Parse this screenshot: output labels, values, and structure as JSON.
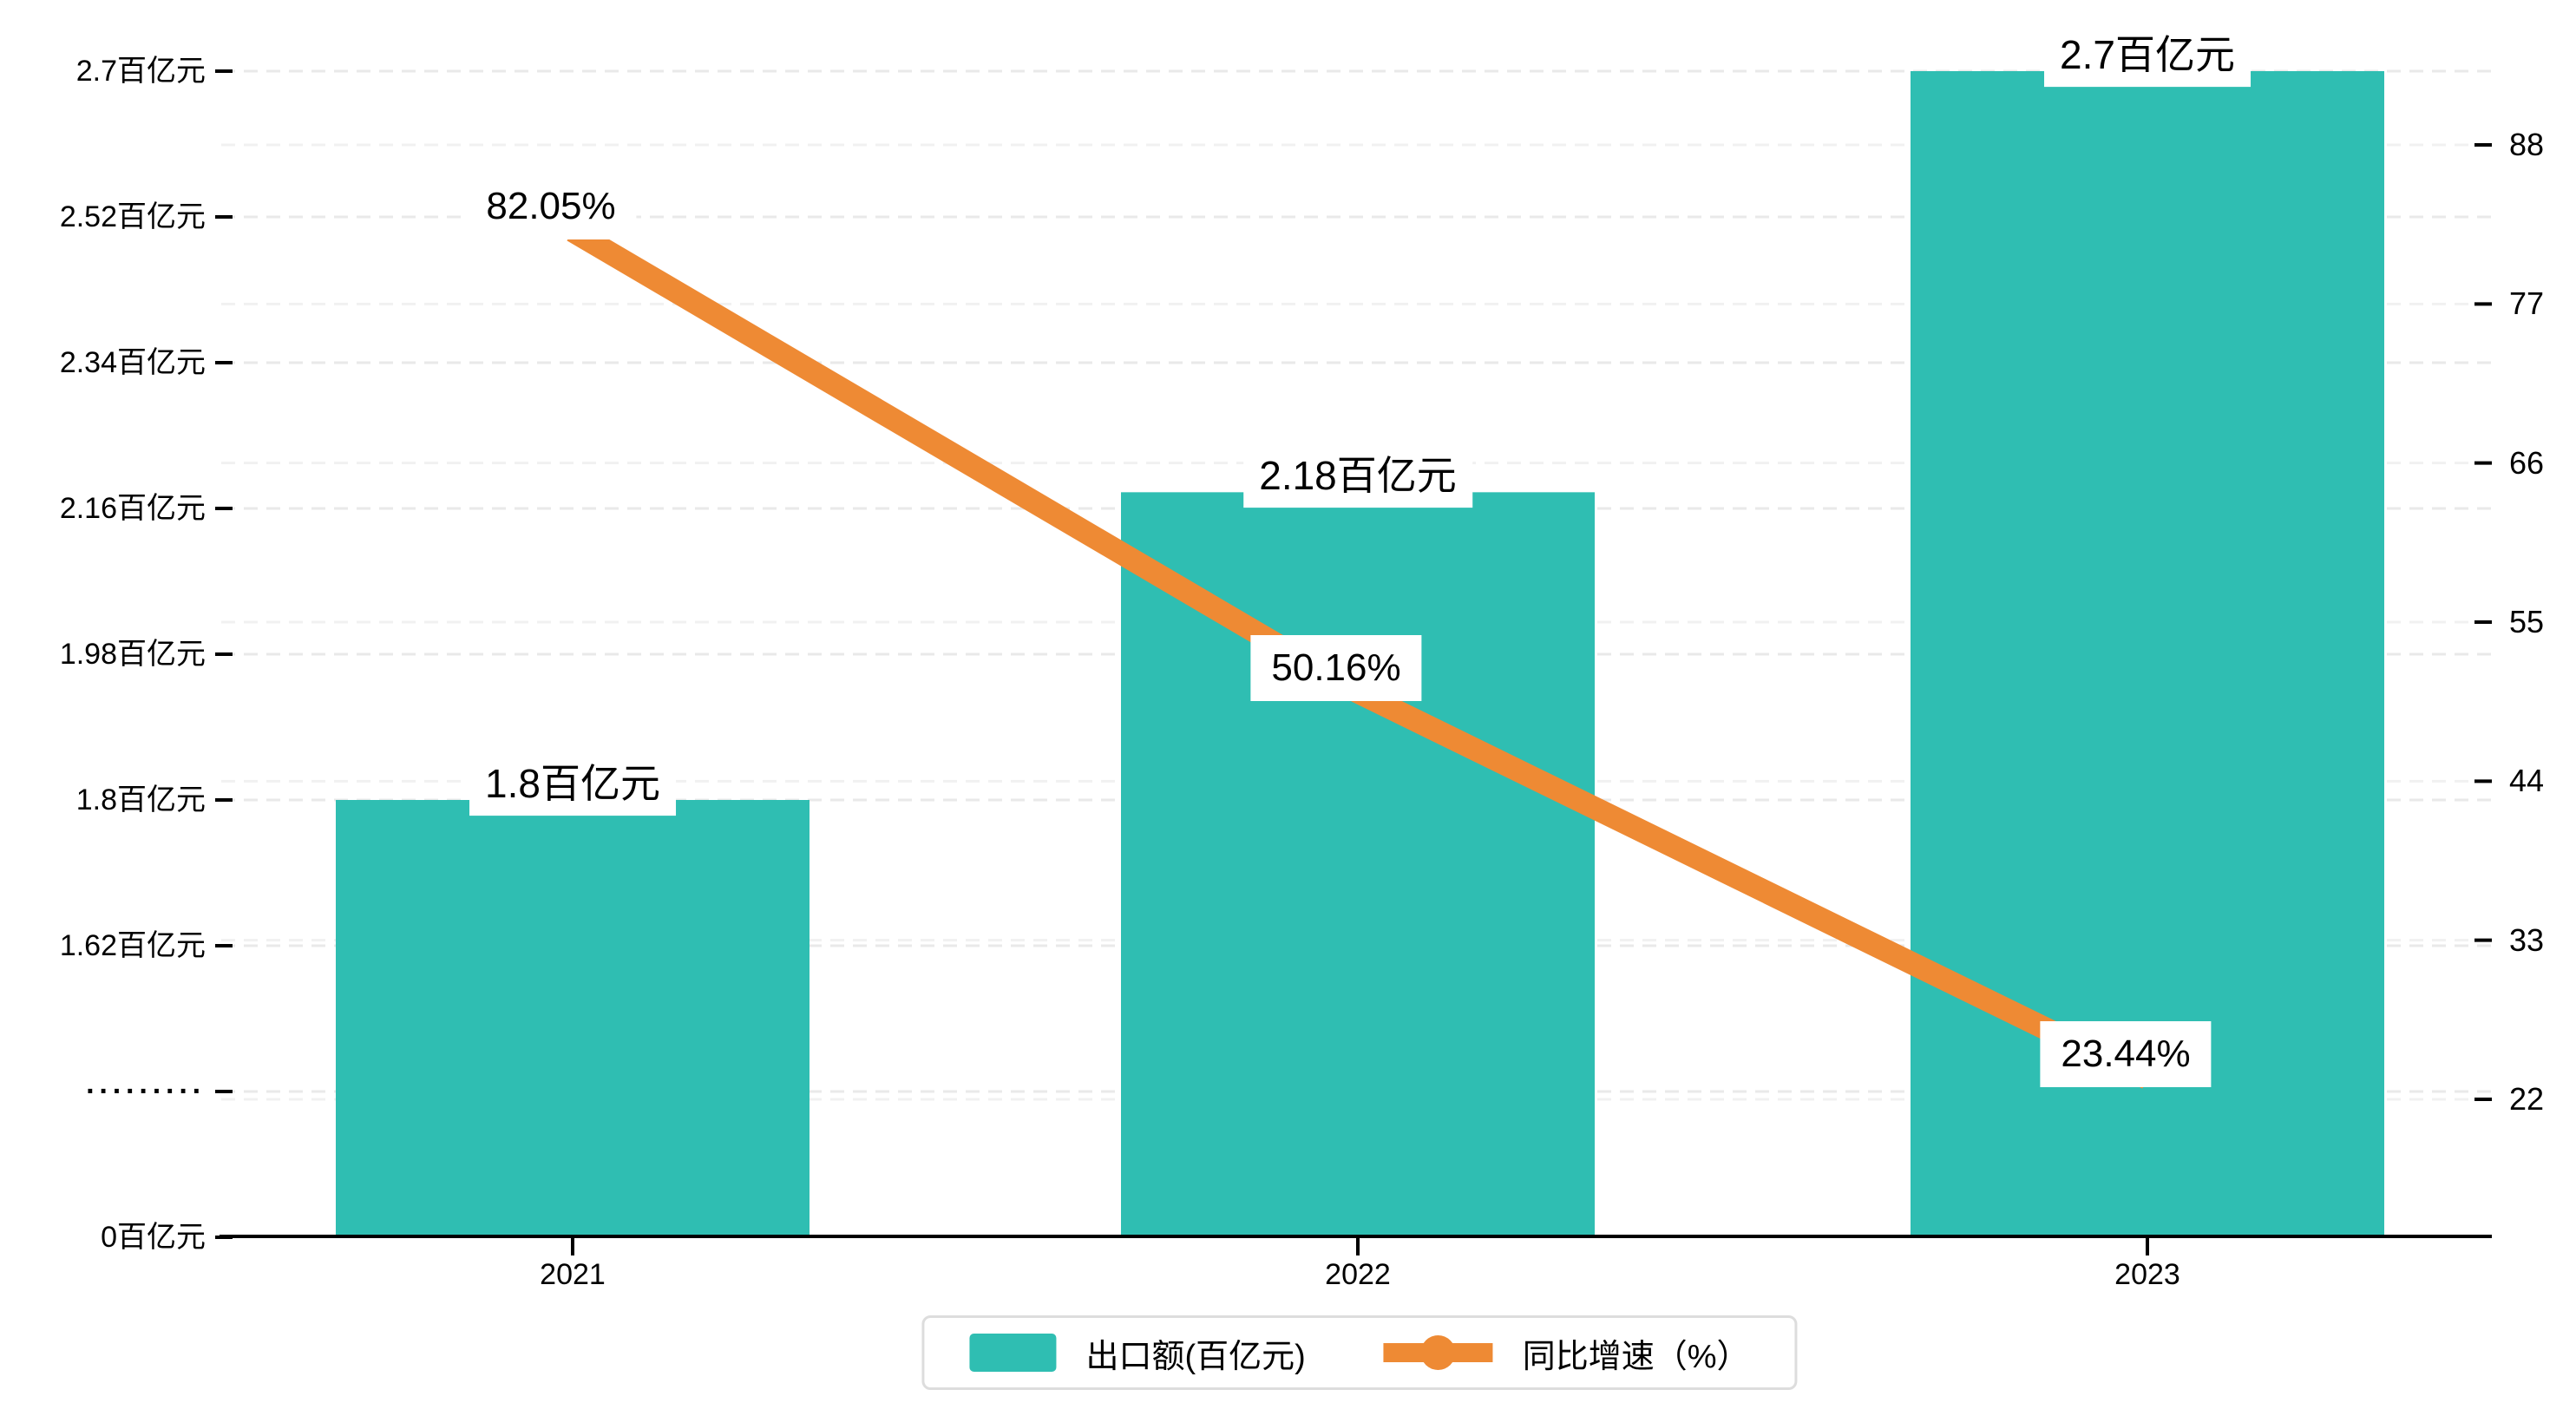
{
  "chart_data": {
    "type": "bar",
    "categories": [
      "2021",
      "2022",
      "2023"
    ],
    "series": [
      {
        "name": "出口额(百亿元)",
        "kind": "bar",
        "axis": "left",
        "color": "#2fbeb2",
        "values": [
          1.8,
          2.18,
          2.7
        ],
        "data_labels": [
          "1.8百亿元",
          "2.18百亿元",
          "2.7百亿元"
        ]
      },
      {
        "name": "同比增速（%）",
        "kind": "line",
        "axis": "right",
        "color": "#ee8a34",
        "values": [
          82.05,
          50.16,
          23.44
        ],
        "data_labels": [
          "82.05%",
          "50.16%",
          "23.44%"
        ]
      }
    ],
    "left_axis": {
      "unit": "百亿元",
      "tick_labels": [
        "2.7百亿元",
        "2.52百亿元",
        "2.34百亿元",
        "2.16百亿元",
        "1.98百亿元",
        "1.8百亿元",
        "1.62百亿元",
        "·········",
        "0百亿元"
      ],
      "tick_values": [
        2.7,
        2.52,
        2.34,
        2.16,
        1.98,
        1.8,
        1.62,
        null,
        0
      ],
      "axis_break": "between 0 and 1.62"
    },
    "right_axis": {
      "tick_labels": [
        "88",
        "77",
        "66",
        "55",
        "44",
        "33",
        "22"
      ],
      "tick_values": [
        88,
        77,
        66,
        55,
        44,
        33,
        22
      ]
    },
    "x_axis": {
      "tick_labels": [
        "2021",
        "2022",
        "2023"
      ]
    },
    "legend_position": "bottom",
    "grid": true,
    "colors": {
      "bar": "#2fbeb2",
      "line": "#ee8a34",
      "grid_left": "#e9e9e9",
      "grid_right": "#f1f1f1",
      "axis": "#000000",
      "label_bg": "#ffffff",
      "legend_border": "#dddddd"
    }
  }
}
